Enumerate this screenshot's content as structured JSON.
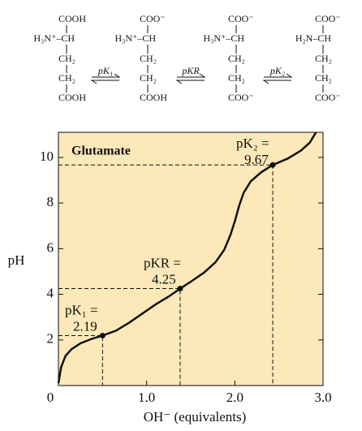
{
  "molecules": [
    [
      "COOH",
      "H₃N⁺–CH",
      "CH₂",
      "CH₂",
      "COOH"
    ],
    [
      "COO⁻",
      "H₃N⁺–CH",
      "CH₂",
      "CH₂",
      "COOH"
    ],
    [
      "COO⁻",
      "H₃N⁺–CH",
      "CH₂",
      "CH₂",
      "COO⁻"
    ],
    [
      "COO⁻",
      "H₂N–CH",
      "CH₂",
      "CH₂",
      "COO⁻"
    ]
  ],
  "equilibria": [
    "pK₁",
    "pKR",
    "pK₂"
  ],
  "chart_data": {
    "type": "line",
    "title": "Glutamate",
    "x_label": "OH⁻ (equivalents)",
    "y_label": "pH",
    "x": [
      0,
      0.03,
      0.08,
      0.15,
      0.25,
      0.38,
      0.5,
      0.65,
      0.8,
      0.95,
      1.1,
      1.25,
      1.38,
      1.5,
      1.65,
      1.78,
      1.88,
      1.95,
      2.0,
      2.05,
      2.1,
      2.18,
      2.3,
      2.43,
      2.6,
      2.75,
      2.85,
      2.92
    ],
    "series": [
      {
        "name": "Glutamate",
        "color": "#111111",
        "values": [
          0.1,
          0.8,
          1.3,
          1.6,
          1.85,
          2.05,
          2.19,
          2.4,
          2.75,
          3.15,
          3.55,
          3.9,
          4.25,
          4.55,
          4.95,
          5.4,
          5.95,
          6.6,
          7.2,
          7.9,
          8.45,
          8.95,
          9.35,
          9.67,
          9.95,
          10.3,
          10.65,
          11.1
        ]
      }
    ],
    "annotations": [
      {
        "label": "pK₁ =",
        "x": 0.5,
        "y": 2.19
      },
      {
        "label": "pKR =",
        "x": 1.38,
        "y": 4.25
      },
      {
        "label": "pK₂ =",
        "x": 2.43,
        "y": 9.67
      }
    ],
    "xlim": [
      0,
      3
    ],
    "ylim": [
      0,
      11.1
    ],
    "xticks": [
      0,
      {
        "value": 1,
        "label": "1.0"
      },
      {
        "value": 2,
        "label": "2.0"
      },
      {
        "value": 3,
        "label": "3.0"
      }
    ],
    "yticks": [
      2,
      4,
      6,
      8,
      10
    ],
    "background": "#fce8b8"
  }
}
